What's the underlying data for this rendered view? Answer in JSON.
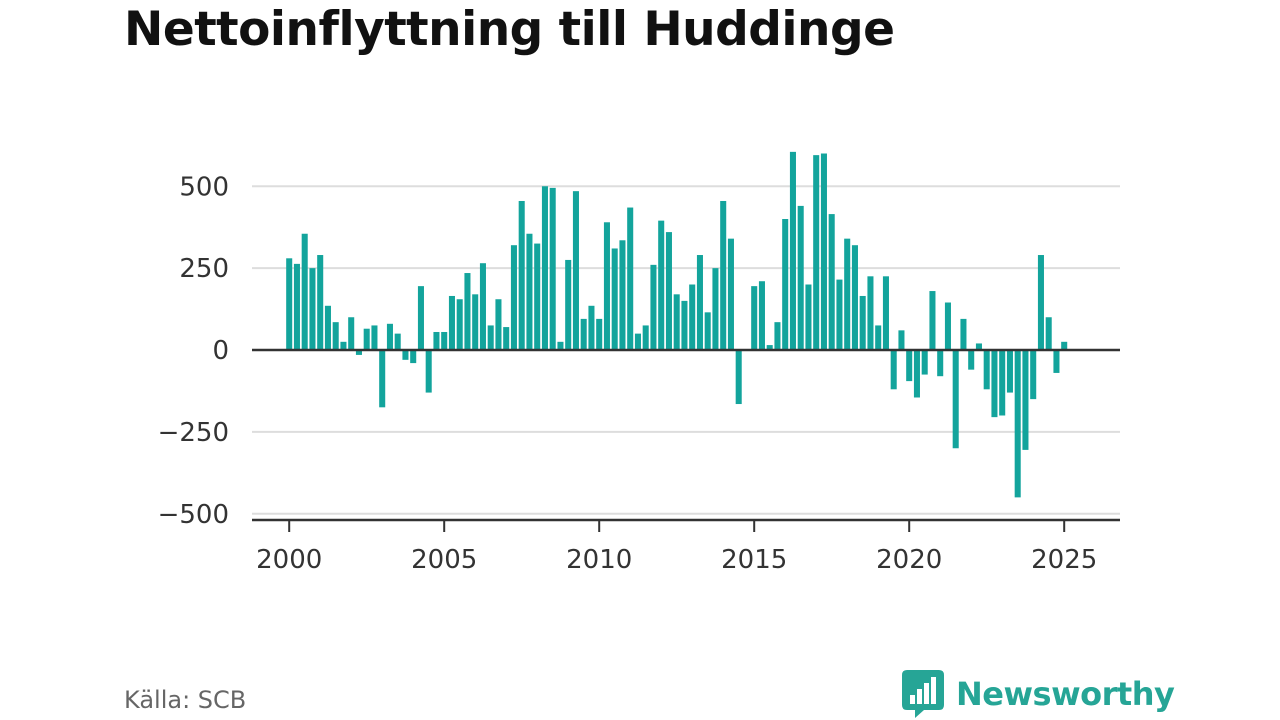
{
  "title": "Nettoinflyttning till Huddinge",
  "source": "Källa: SCB",
  "brand": {
    "name": "Newsworthy",
    "color": "#26a596",
    "icon": "newsworthy-chat-bars-icon"
  },
  "colors": {
    "bar": "#13a49c",
    "grid": "#dddddd",
    "zero_line": "#333333",
    "axis": "#333333"
  },
  "chart_data": {
    "type": "bar",
    "title": "Nettoinflyttning till Huddinge",
    "xlabel": "",
    "ylabel": "",
    "frequency": "quarterly",
    "x_start": 2000.0,
    "x_step": 0.25,
    "xlim": [
      1998.8,
      2026.8
    ],
    "ylim": [
      -520,
      680
    ],
    "x_ticks": [
      2000,
      2005,
      2010,
      2015,
      2020,
      2025
    ],
    "y_ticks": [
      -500,
      -250,
      0,
      250,
      500
    ],
    "y_tick_labels": [
      "−500",
      "−250",
      "0",
      "250",
      "500"
    ],
    "grid": true,
    "legend": "none",
    "values": [
      280,
      263,
      355,
      250,
      290,
      135,
      85,
      25,
      100,
      -15,
      65,
      75,
      -175,
      80,
      50,
      -30,
      -40,
      195,
      -130,
      55,
      55,
      165,
      155,
      235,
      170,
      265,
      75,
      155,
      70,
      320,
      455,
      355,
      325,
      500,
      495,
      25,
      275,
      485,
      95,
      135,
      95,
      390,
      310,
      335,
      435,
      50,
      75,
      260,
      395,
      360,
      170,
      150,
      200,
      290,
      115,
      250,
      455,
      340,
      -165,
      0,
      195,
      210,
      15,
      85,
      400,
      605,
      440,
      200,
      595,
      600,
      415,
      215,
      340,
      320,
      165,
      225,
      75,
      225,
      -120,
      60,
      -95,
      -145,
      -75,
      180,
      -80,
      145,
      -300,
      95,
      -60,
      20,
      -120,
      -205,
      -200,
      -130,
      -450,
      -305,
      -150,
      290,
      100,
      -70,
      25
    ]
  }
}
